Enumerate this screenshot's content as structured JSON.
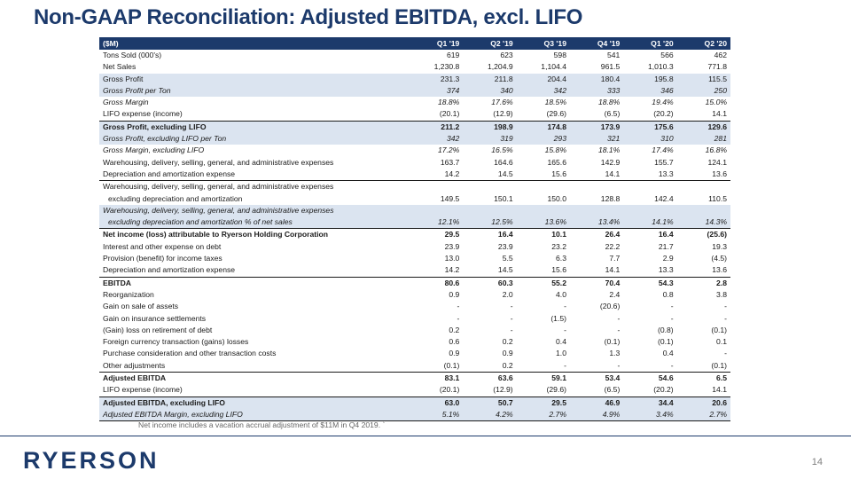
{
  "title": "Non-GAAP Reconciliation: Adjusted EBITDA, excl. LIFO",
  "table": {
    "header": [
      "($M)",
      "Q1 '19",
      "Q2 '19",
      "Q3 '19",
      "Q4 '19",
      "Q1 '20",
      "Q2 '20"
    ],
    "rows": [
      {
        "label": "Tons Sold (000's)",
        "values": [
          "619",
          "623",
          "598",
          "541",
          "566",
          "462"
        ]
      },
      {
        "label": "Net Sales",
        "values": [
          "1,230.8",
          "1,204.9",
          "1,104.4",
          "961.5",
          "1,010.3",
          "771.8"
        ]
      },
      {
        "label": "Gross Profit",
        "values": [
          "231.3",
          "211.8",
          "204.4",
          "180.4",
          "195.8",
          "115.5"
        ]
      },
      {
        "label": "Gross Profit per Ton",
        "values": [
          "374",
          "340",
          "342",
          "333",
          "346",
          "250"
        ]
      },
      {
        "label": "Gross Margin",
        "values": [
          "18.8%",
          "17.6%",
          "18.5%",
          "18.8%",
          "19.4%",
          "15.0%"
        ]
      },
      {
        "label": "LIFO expense (income)",
        "values": [
          "(20.1)",
          "(12.9)",
          "(29.6)",
          "(6.5)",
          "(20.2)",
          "14.1"
        ]
      },
      {
        "label": "Gross Profit, excluding LIFO",
        "values": [
          "211.2",
          "198.9",
          "174.8",
          "173.9",
          "175.6",
          "129.6"
        ]
      },
      {
        "label": "Gross Profit, excluding LIFO per Ton",
        "values": [
          "342",
          "319",
          "293",
          "321",
          "310",
          "281"
        ]
      },
      {
        "label": "Gross Margin, excluding LIFO",
        "values": [
          "17.2%",
          "16.5%",
          "15.8%",
          "18.1%",
          "17.4%",
          "16.8%"
        ]
      },
      {
        "label": "Warehousing, delivery, selling, general, and administrative expenses",
        "values": [
          "163.7",
          "164.6",
          "165.6",
          "142.9",
          "155.7",
          "124.1"
        ]
      },
      {
        "label": "Depreciation and amortization expense",
        "values": [
          "14.2",
          "14.5",
          "15.6",
          "14.1",
          "13.3",
          "13.6"
        ]
      },
      {
        "label": "Warehousing, delivery, selling, general, and administrative expenses",
        "label2": "excluding depreciation and amortization",
        "values": [
          "149.5",
          "150.1",
          "150.0",
          "128.8",
          "142.4",
          "110.5"
        ]
      },
      {
        "label": "Warehousing, delivery, selling, general, and administrative expenses",
        "label2": "excluding depreciation and amortization % of net sales",
        "values": [
          "12.1%",
          "12.5%",
          "13.6%",
          "13.4%",
          "14.1%",
          "14.3%"
        ]
      },
      {
        "label": "Net income (loss) attributable to Ryerson Holding Corporation",
        "values": [
          "29.5",
          "16.4",
          "10.1",
          "26.4",
          "16.4",
          "(25.6)"
        ]
      },
      {
        "label": "Interest and other expense on debt",
        "values": [
          "23.9",
          "23.9",
          "23.2",
          "22.2",
          "21.7",
          "19.3"
        ]
      },
      {
        "label": "Provision (benefit) for income taxes",
        "values": [
          "13.0",
          "5.5",
          "6.3",
          "7.7",
          "2.9",
          "(4.5)"
        ]
      },
      {
        "label": "Depreciation and amortization expense",
        "values": [
          "14.2",
          "14.5",
          "15.6",
          "14.1",
          "13.3",
          "13.6"
        ]
      },
      {
        "label": "EBITDA",
        "values": [
          "80.6",
          "60.3",
          "55.2",
          "70.4",
          "54.3",
          "2.8"
        ]
      },
      {
        "label": "Reorganization",
        "values": [
          "0.9",
          "2.0",
          "4.0",
          "2.4",
          "0.8",
          "3.8"
        ]
      },
      {
        "label": "Gain on sale of assets",
        "values": [
          "-",
          "-",
          "-",
          "(20.6)",
          "-",
          "-"
        ]
      },
      {
        "label": "Gain on insurance settlements",
        "values": [
          "-",
          "-",
          "(1.5)",
          "-",
          "-",
          "-"
        ]
      },
      {
        "label": "(Gain) loss on retirement of debt",
        "values": [
          "0.2",
          "-",
          "-",
          "-",
          "(0.8)",
          "(0.1)"
        ]
      },
      {
        "label": "Foreign currency transaction (gains) losses",
        "values": [
          "0.6",
          "0.2",
          "0.4",
          "(0.1)",
          "(0.1)",
          "0.1"
        ]
      },
      {
        "label": "Purchase consideration and other transaction costs",
        "values": [
          "0.9",
          "0.9",
          "1.0",
          "1.3",
          "0.4",
          "-"
        ]
      },
      {
        "label": "Other adjustments",
        "values": [
          "(0.1)",
          "0.2",
          "-",
          "-",
          "-",
          "(0.1)"
        ]
      },
      {
        "label": "Adjusted EBITDA",
        "values": [
          "83.1",
          "63.6",
          "59.1",
          "53.4",
          "54.6",
          "6.5"
        ]
      },
      {
        "label": "LIFO expense (income)",
        "values": [
          "(20.1)",
          "(12.9)",
          "(29.6)",
          "(6.5)",
          "(20.2)",
          "14.1"
        ]
      },
      {
        "label": "Adjusted EBITDA, excluding LIFO",
        "values": [
          "63.0",
          "50.7",
          "29.5",
          "46.9",
          "34.4",
          "20.6"
        ]
      },
      {
        "label": "Adjusted EBITDA Margin, excluding LIFO",
        "values": [
          "5.1%",
          "4.2%",
          "2.7%",
          "4.9%",
          "3.4%",
          "2.7%"
        ]
      }
    ]
  },
  "footnote": "Net income includes a vacation accrual adjustment of $11M in Q4 2019.  `",
  "logo_text": "RYERSON",
  "page_number": "14",
  "colors": {
    "brand": "#1c3a6b",
    "shade": "#dbe4f0"
  }
}
